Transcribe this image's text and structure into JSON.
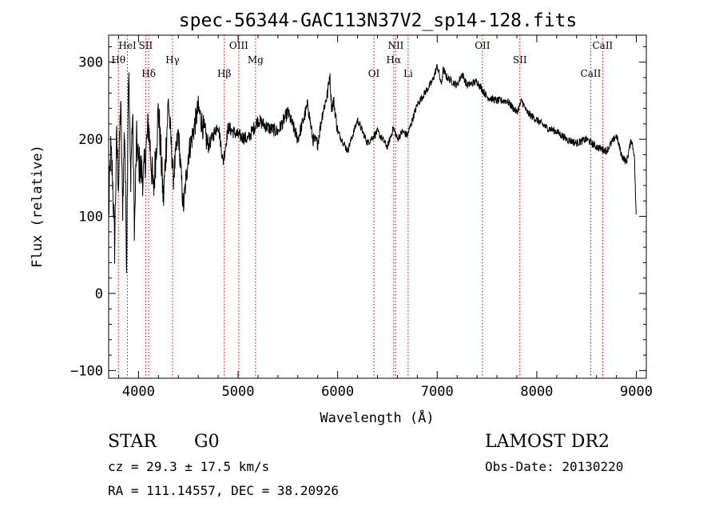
{
  "chart_data": {
    "type": "line",
    "title": "spec-56344-GAC113N37V2_sp14-128.fits",
    "xlabel": "Wavelength (Å)",
    "ylabel": "Flux (relative)",
    "xlim": [
      3700,
      9100
    ],
    "ylim": [
      -110,
      335
    ],
    "x_ticks": [
      4000,
      5000,
      6000,
      7000,
      8000,
      9000
    ],
    "x_tick_labels": [
      "4000",
      "5000",
      "6000",
      "7000",
      "8000",
      "9000"
    ],
    "y_ticks": [
      -100,
      0,
      100,
      200,
      300
    ],
    "y_tick_labels": [
      "−100",
      "0",
      "100",
      "200",
      "300"
    ],
    "line_color": "#000000",
    "marker_color": "#cc0000",
    "series": [
      {
        "x": [
          3700,
          3720,
          3740,
          3760,
          3780,
          3800,
          3820,
          3840,
          3860,
          3880,
          3900,
          3920,
          3940,
          3960,
          3980,
          4000,
          4050,
          4100,
          4150,
          4200,
          4250,
          4300,
          4350,
          4400,
          4450,
          4500,
          4600,
          4700,
          4800,
          4850,
          4900,
          5000,
          5100,
          5200,
          5300,
          5400,
          5500,
          5600,
          5700,
          5750,
          5800,
          5850,
          5900,
          5920,
          5940,
          5960,
          6000,
          6100,
          6200,
          6300,
          6400,
          6500,
          6560,
          6600,
          6650,
          6700,
          6750,
          6800,
          6850,
          6900,
          6950,
          7000,
          7020,
          7040,
          7060,
          7100,
          7150,
          7200,
          7250,
          7300,
          7400,
          7500,
          7600,
          7700,
          7800,
          7850,
          7900,
          8000,
          8100,
          8200,
          8300,
          8400,
          8500,
          8600,
          8700,
          8800,
          8850,
          8900,
          8950,
          8980,
          9000
        ],
        "y": [
          100,
          185,
          150,
          60,
          200,
          140,
          250,
          110,
          220,
          40,
          300,
          150,
          230,
          80,
          200,
          170,
          150,
          220,
          130,
          240,
          120,
          250,
          150,
          210,
          110,
          180,
          240,
          190,
          220,
          170,
          215,
          205,
          200,
          225,
          215,
          210,
          235,
          200,
          245,
          200,
          195,
          235,
          260,
          285,
          240,
          250,
          210,
          185,
          225,
          195,
          210,
          190,
          215,
          200,
          210,
          205,
          225,
          245,
          255,
          265,
          275,
          295,
          285,
          270,
          290,
          280,
          275,
          270,
          285,
          270,
          275,
          255,
          250,
          250,
          235,
          250,
          235,
          225,
          215,
          210,
          200,
          195,
          200,
          190,
          185,
          205,
          180,
          170,
          200,
          180,
          90
        ]
      }
    ],
    "lines": [
      {
        "label": "HeI",
        "x": 3889
      },
      {
        "label": "Hθ",
        "x": 3798
      },
      {
        "label": "Hδ",
        "x": 4102
      },
      {
        "label": "SII",
        "x": 4072
      },
      {
        "label": "Hγ",
        "x": 4341
      },
      {
        "label": "Hβ",
        "x": 4861
      },
      {
        "label": "OIII",
        "x": 5007
      },
      {
        "label": "Mg",
        "x": 5175
      },
      {
        "label": "OI",
        "x": 6364
      },
      {
        "label": "NII",
        "x": 6584
      },
      {
        "label": "Hα",
        "x": 6563
      },
      {
        "label": "Li",
        "x": 6708
      },
      {
        "label": "OII",
        "x": 7454
      },
      {
        "label": "SII",
        "x": 7830
      },
      {
        "label": "CaII",
        "x": 8542
      },
      {
        "label": "CaII",
        "x": 8662
      }
    ]
  },
  "info": {
    "class": "STAR",
    "subclass": "G0",
    "survey": "LAMOST DR2",
    "cz": "cz = 29.3 ± 17.5 km/s",
    "obs_date": "Obs-Date: 20130220",
    "coords": "RA = 111.14557, DEC =  38.20926"
  }
}
